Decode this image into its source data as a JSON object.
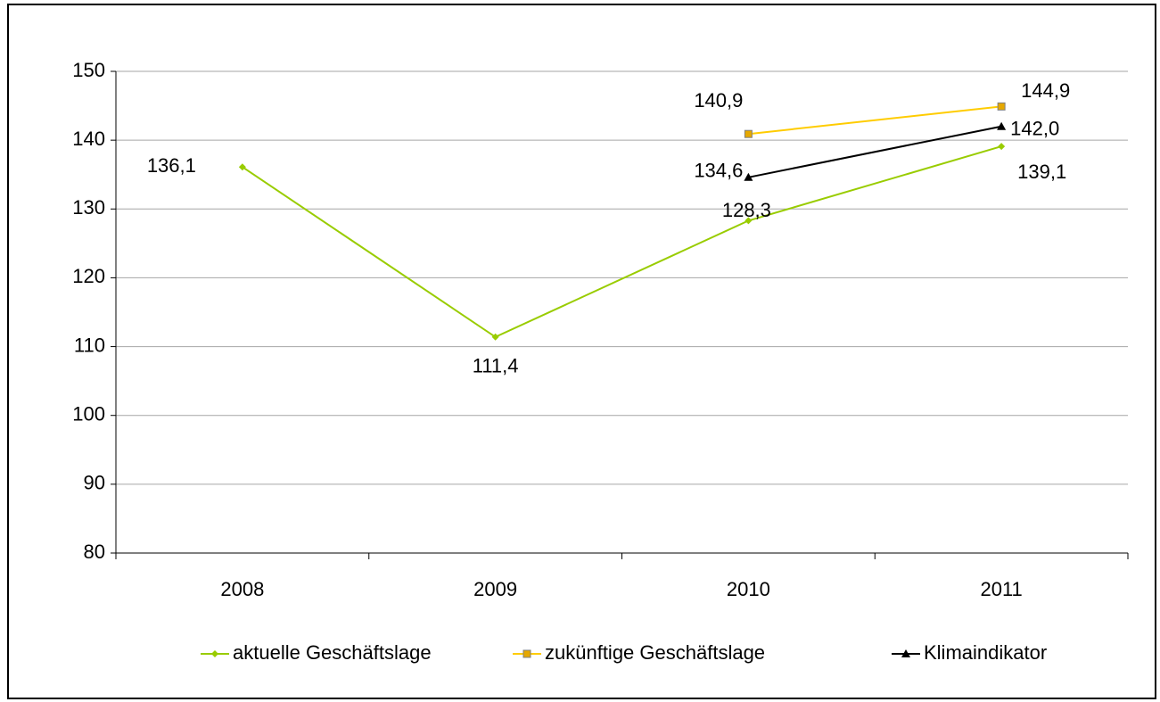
{
  "chart_data": {
    "type": "line",
    "categories": [
      "2008",
      "2009",
      "2010",
      "2011"
    ],
    "series": [
      {
        "name": "aktuelle Geschäftslage",
        "color": "#99cc00",
        "marker": "diamond",
        "values": [
          136.1,
          111.4,
          128.3,
          139.1
        ],
        "value_labels": [
          "136,1",
          "111,4",
          "128,3",
          "139,1"
        ]
      },
      {
        "name": "zukünftige Geschäftslage",
        "color": "#ffcc00",
        "marker": "square",
        "values": [
          null,
          null,
          140.9,
          144.9
        ],
        "value_labels": [
          null,
          null,
          "140,9",
          "144,9"
        ]
      },
      {
        "name": "Klimaindikator",
        "color": "#000000",
        "marker": "triangle",
        "values": [
          null,
          null,
          134.6,
          142.0
        ],
        "value_labels": [
          null,
          null,
          "134,6",
          "142,0"
        ]
      }
    ],
    "ylim": [
      80,
      150
    ],
    "yticks": [
      80,
      90,
      100,
      110,
      120,
      130,
      140,
      150
    ],
    "grid": true,
    "legend": "bottom"
  }
}
